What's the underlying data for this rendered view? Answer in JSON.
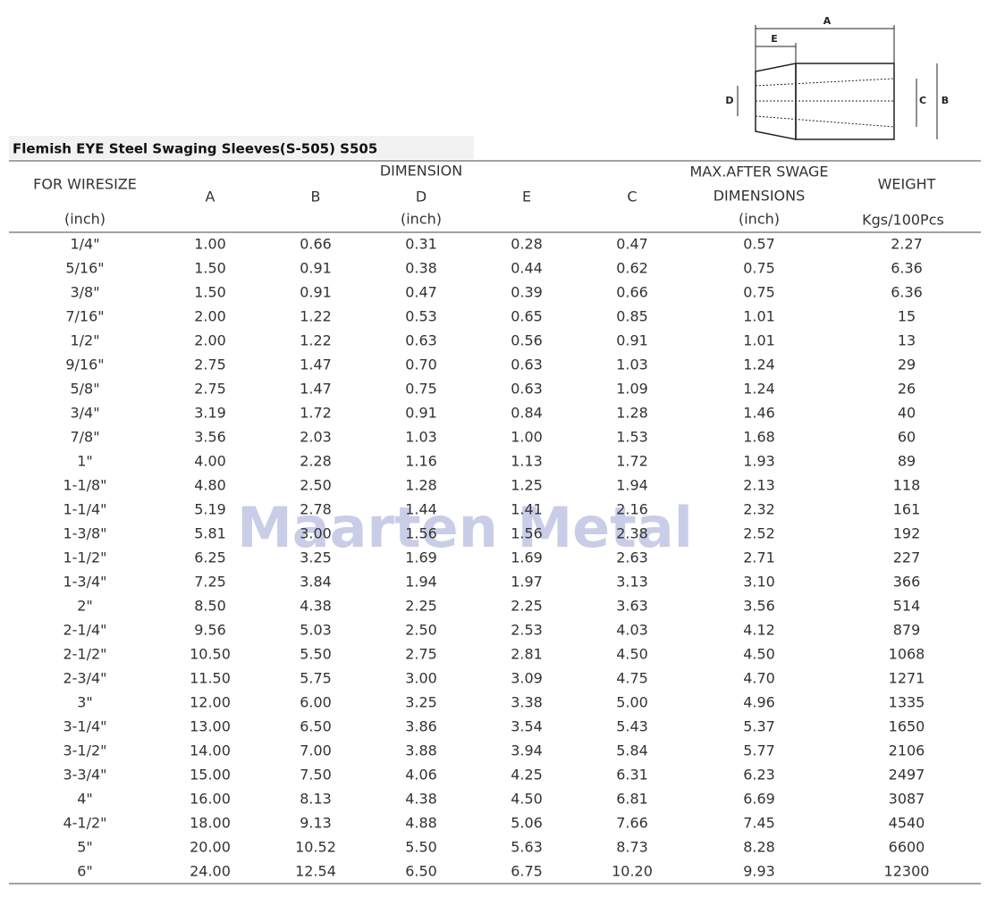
{
  "diagram": {
    "labels": {
      "a": "A",
      "e": "E",
      "b": "B",
      "c": "C",
      "d": "D"
    }
  },
  "title": "Flemish EYE Steel Swaging Sleeves(S-505) S505",
  "watermark": "Maarten Metal",
  "table": {
    "header": {
      "wiresize": "FOR WIRESIZE",
      "wiresize_unit": "(inch)",
      "dimension": "DIMENSION",
      "dimension_unit": "(inch)",
      "columns": [
        "A",
        "B",
        "D",
        "E",
        "C"
      ],
      "max_swage": "MAX.AFTER SWAGE",
      "max_swage_2": "DIMENSIONS",
      "max_swage_unit": "(inch)",
      "weight": "WEIGHT",
      "weight_unit": "Kgs/100Pcs"
    },
    "rows": [
      [
        "1/4\"",
        "1.00",
        "0.66",
        "0.31",
        "0.28",
        "0.47",
        "0.57",
        "2.27"
      ],
      [
        "5/16\"",
        "1.50",
        "0.91",
        "0.38",
        "0.44",
        "0.62",
        "0.75",
        "6.36"
      ],
      [
        "3/8\"",
        "1.50",
        "0.91",
        "0.47",
        "0.39",
        "0.66",
        "0.75",
        "6.36"
      ],
      [
        "7/16\"",
        "2.00",
        "1.22",
        "0.53",
        "0.65",
        "0.85",
        "1.01",
        "15"
      ],
      [
        "1/2\"",
        "2.00",
        "1.22",
        "0.63",
        "0.56",
        "0.91",
        "1.01",
        "13"
      ],
      [
        "9/16\"",
        "2.75",
        "1.47",
        "0.70",
        "0.63",
        "1.03",
        "1.24",
        "29"
      ],
      [
        "5/8\"",
        "2.75",
        "1.47",
        "0.75",
        "0.63",
        "1.09",
        "1.24",
        "26"
      ],
      [
        "3/4\"",
        "3.19",
        "1.72",
        "0.91",
        "0.84",
        "1.28",
        "1.46",
        "40"
      ],
      [
        "7/8\"",
        "3.56",
        "2.03",
        "1.03",
        "1.00",
        "1.53",
        "1.68",
        "60"
      ],
      [
        "1\"",
        "4.00",
        "2.28",
        "1.16",
        "1.13",
        "1.72",
        "1.93",
        "89"
      ],
      [
        "1-1/8\"",
        "4.80",
        "2.50",
        "1.28",
        "1.25",
        "1.94",
        "2.13",
        "118"
      ],
      [
        "1-1/4\"",
        "5.19",
        "2.78",
        "1.44",
        "1.41",
        "2.16",
        "2.32",
        "161"
      ],
      [
        "1-3/8\"",
        "5.81",
        "3.00",
        "1.56",
        "1.56",
        "2.38",
        "2.52",
        "192"
      ],
      [
        "1-1/2\"",
        "6.25",
        "3.25",
        "1.69",
        "1.69",
        "2.63",
        "2.71",
        "227"
      ],
      [
        "1-3/4\"",
        "7.25",
        "3.84",
        "1.94",
        "1.97",
        "3.13",
        "3.10",
        "366"
      ],
      [
        "2\"",
        "8.50",
        "4.38",
        "2.25",
        "2.25",
        "3.63",
        "3.56",
        "514"
      ],
      [
        "2-1/4\"",
        "9.56",
        "5.03",
        "2.50",
        "2.53",
        "4.03",
        "4.12",
        "879"
      ],
      [
        "2-1/2\"",
        "10.50",
        "5.50",
        "2.75",
        "2.81",
        "4.50",
        "4.50",
        "1068"
      ],
      [
        "2-3/4\"",
        "11.50",
        "5.75",
        "3.00",
        "3.09",
        "4.75",
        "4.70",
        "1271"
      ],
      [
        "3\"",
        "12.00",
        "6.00",
        "3.25",
        "3.38",
        "5.00",
        "4.96",
        "1335"
      ],
      [
        "3-1/4\"",
        "13.00",
        "6.50",
        "3.86",
        "3.54",
        "5.43",
        "5.37",
        "1650"
      ],
      [
        "3-1/2\"",
        "14.00",
        "7.00",
        "3.88",
        "3.94",
        "5.84",
        "5.77",
        "2106"
      ],
      [
        "3-3/4\"",
        "15.00",
        "7.50",
        "4.06",
        "4.25",
        "6.31",
        "6.23",
        "2497"
      ],
      [
        "4\"",
        "16.00",
        "8.13",
        "4.38",
        "4.50",
        "6.81",
        "6.69",
        "3087"
      ],
      [
        "4-1/2\"",
        "18.00",
        "9.13",
        "4.88",
        "5.06",
        "7.66",
        "7.45",
        "4540"
      ],
      [
        "5\"",
        "20.00",
        "10.52",
        "5.50",
        "5.63",
        "8.73",
        "8.28",
        "6600"
      ],
      [
        "6\"",
        "24.00",
        "12.54",
        "6.50",
        "6.75",
        "10.20",
        "9.93",
        "12300"
      ]
    ]
  }
}
